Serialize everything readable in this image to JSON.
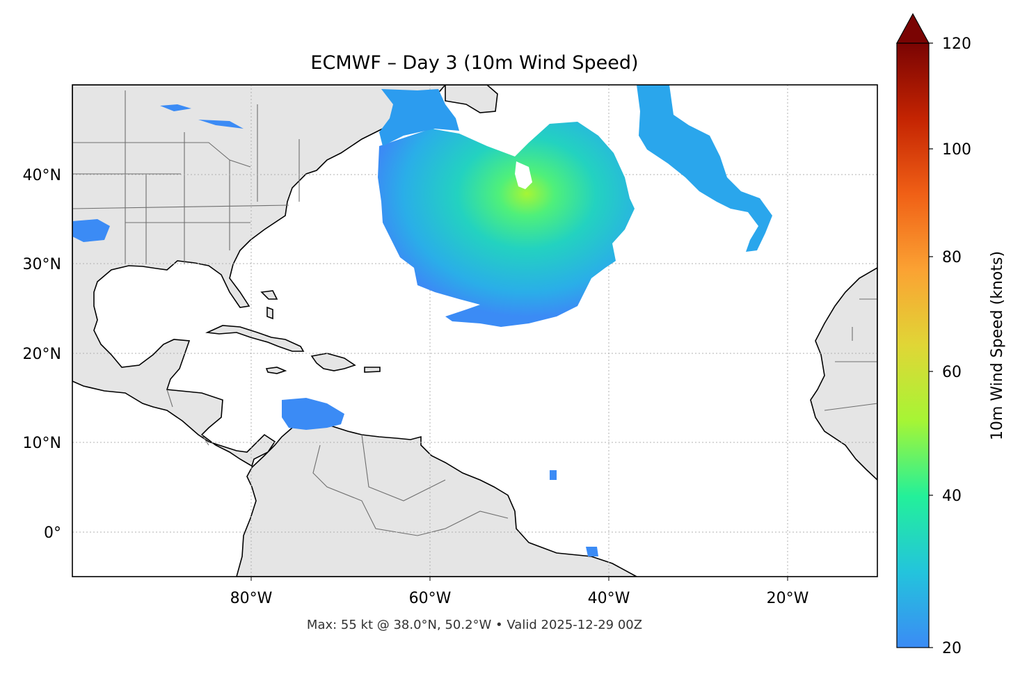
{
  "title": "ECMWF – Day 3 (10m Wind Speed)",
  "footer": "Max: 55 kt @ 38.0°N, 50.2°W • Valid 2025-12-29 00Z",
  "map": {
    "lon_range": [
      -100,
      -10
    ],
    "lat_range": [
      -5,
      50
    ],
    "lon_ticks": [
      {
        "value": -80,
        "label": "80°W"
      },
      {
        "value": -60,
        "label": "60°W"
      },
      {
        "value": -40,
        "label": "40°W"
      },
      {
        "value": -20,
        "label": "20°W"
      }
    ],
    "lat_ticks": [
      {
        "value": 40,
        "label": "40°N"
      },
      {
        "value": 30,
        "label": "30°N"
      },
      {
        "value": 20,
        "label": "20°N"
      },
      {
        "value": 10,
        "label": "10°N"
      },
      {
        "value": 0,
        "label": "0°"
      }
    ],
    "gridlines": true,
    "land_color": "#e5e5e5",
    "coast_color": "#000000"
  },
  "colorbar": {
    "label": "10m Wind Speed (knots)",
    "min": 20,
    "max": 120,
    "extend": "max",
    "ticks": [
      {
        "value": 20,
        "label": "20"
      },
      {
        "value": 40,
        "label": "40"
      },
      {
        "value": 60,
        "label": "60"
      },
      {
        "value": 80,
        "label": "80"
      },
      {
        "value": 100,
        "label": "100"
      },
      {
        "value": 120,
        "label": "120"
      }
    ],
    "colors": [
      "#3b8bf5",
      "#23c4dc",
      "#23f09a",
      "#a6f535",
      "#e0d636",
      "#fba233",
      "#f06016",
      "#c42402",
      "#7a0403"
    ]
  },
  "wind_max": {
    "value_kt": 55,
    "lat": 38.0,
    "lon": -50.2
  }
}
